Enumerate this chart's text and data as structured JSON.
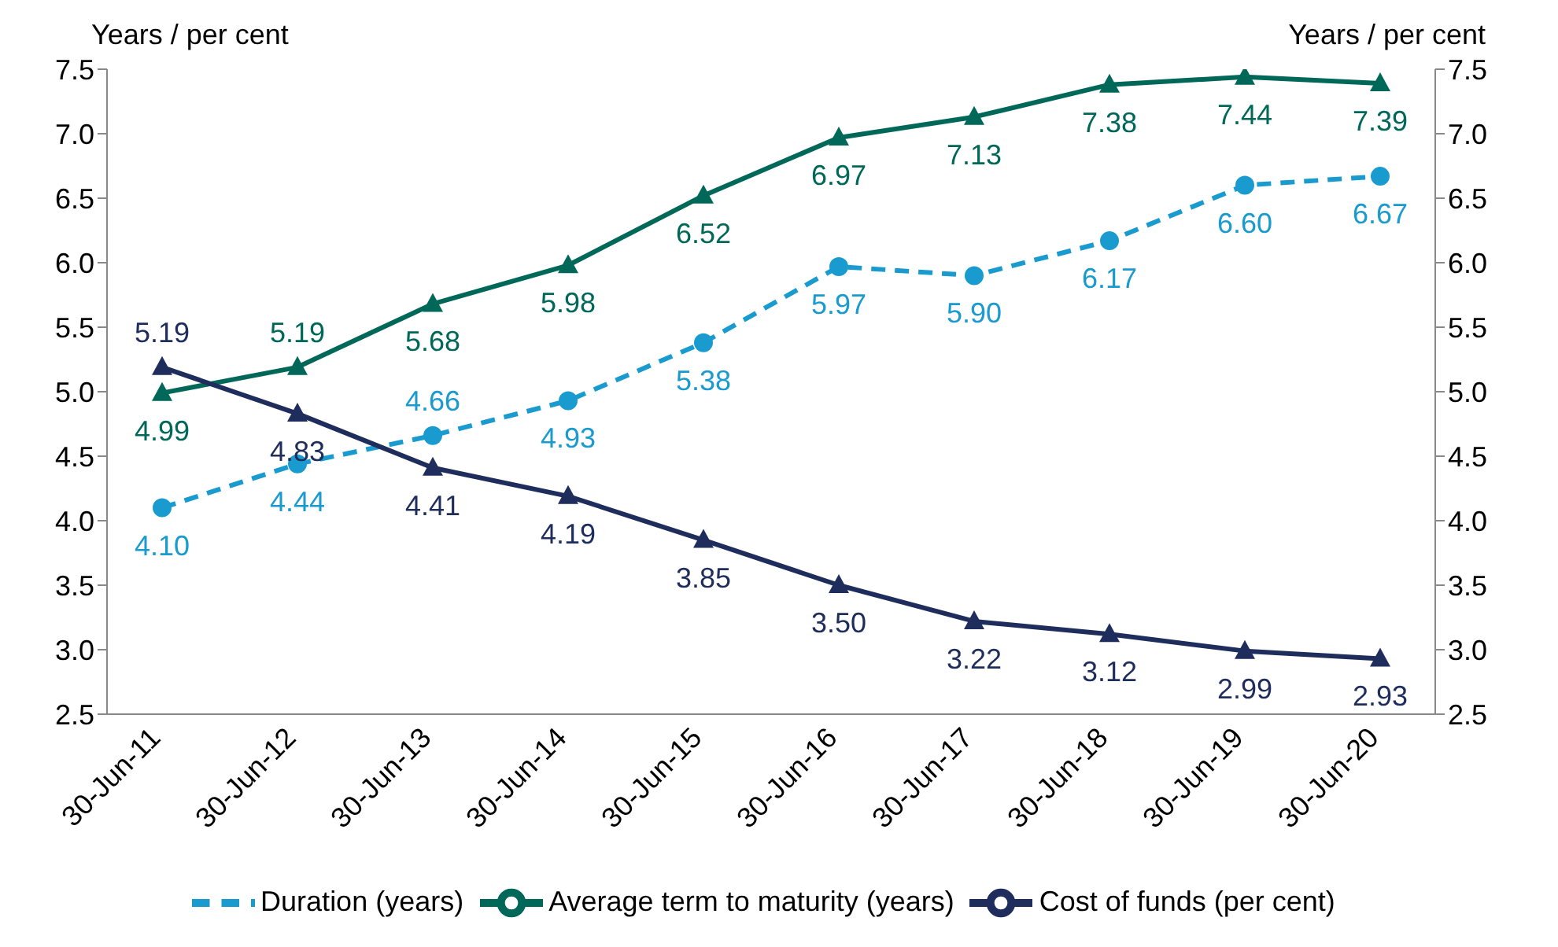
{
  "chart_data": {
    "type": "line",
    "ylabel": "Years / per cent",
    "y2label": "Years / per cent",
    "categories": [
      "30-Jun-11",
      "30-Jun-12",
      "30-Jun-13",
      "30-Jun-14",
      "30-Jun-15",
      "30-Jun-16",
      "30-Jun-17",
      "30-Jun-18",
      "30-Jun-19",
      "30-Jun-20"
    ],
    "series": [
      {
        "name": "Duration (years)",
        "color": "#1a9bd0",
        "marker": "circle",
        "line_style": "dashed",
        "values": [
          4.1,
          4.44,
          4.66,
          4.93,
          5.38,
          5.97,
          5.9,
          6.17,
          6.6,
          6.67
        ],
        "value_labels": [
          "4.10",
          "4.44",
          "4.66",
          "4.93",
          "5.38",
          "5.97",
          "5.90",
          "6.17",
          "6.60",
          "6.67"
        ]
      },
      {
        "name": "Average term to maturity (years)",
        "color": "#006858",
        "marker": "triangle",
        "line_style": "solid",
        "values": [
          4.99,
          5.19,
          5.68,
          5.98,
          6.52,
          6.97,
          7.13,
          7.38,
          7.44,
          7.39
        ],
        "value_labels": [
          "4.99",
          "5.19",
          "5.68",
          "5.98",
          "6.52",
          "6.97",
          "7.13",
          "7.38",
          "7.44",
          "7.39"
        ]
      },
      {
        "name": "Cost of funds (per cent)",
        "color": "#1f2d5c",
        "marker": "triangle",
        "line_style": "solid",
        "values": [
          5.19,
          4.83,
          4.41,
          4.19,
          3.85,
          3.5,
          3.22,
          3.12,
          2.99,
          2.93
        ],
        "value_labels": [
          "5.19",
          "4.83",
          "4.41",
          "4.19",
          "3.85",
          "3.50",
          "3.22",
          "3.12",
          "2.99",
          "2.93"
        ]
      }
    ],
    "ylim": [
      2.5,
      7.5
    ],
    "yticks": [
      2.5,
      {
        "value": 3,
        "label": "3.0"
      },
      3.5,
      {
        "value": 4,
        "label": "4.0"
      },
      4.5,
      {
        "value": 5,
        "label": "5.0"
      },
      5.5,
      {
        "value": 6,
        "label": "6.0"
      },
      6.5,
      {
        "value": 7,
        "label": "7.0"
      },
      7.5
    ],
    "y2lim": [
      2.5,
      7.5
    ],
    "y2ticks": [
      2.5,
      {
        "value": 3,
        "label": "3.0"
      },
      3.5,
      {
        "value": 4,
        "label": "4.0"
      },
      4.5,
      {
        "value": 5,
        "label": "5.0"
      },
      5.5,
      {
        "value": 6,
        "label": "6.0"
      },
      6.5,
      {
        "value": 7,
        "label": "7.0"
      },
      7.5
    ],
    "grid": false,
    "legend": "bottom"
  }
}
